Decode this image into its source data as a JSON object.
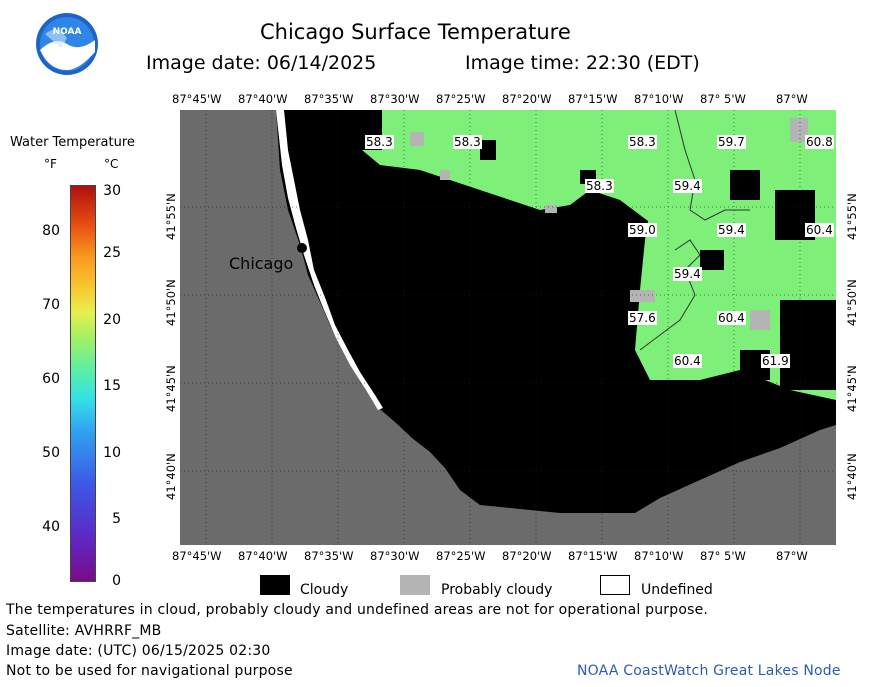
{
  "header": {
    "title": "Chicago Surface Temperature",
    "image_date": "Image date: 06/14/2025",
    "image_time": "Image time: 22:30 (EDT)"
  },
  "logo": {
    "text": "NOAA"
  },
  "colorbar": {
    "title": "Water Temperature",
    "unit_f": "°F",
    "unit_c": "°C",
    "f_ticks": [
      "80",
      "70",
      "60",
      "50",
      "40"
    ],
    "c_ticks": [
      "30",
      "25",
      "20",
      "15",
      "10",
      "5",
      "0"
    ]
  },
  "map": {
    "lon_labels": [
      "87°45'W",
      "87°40'W",
      "87°35'W",
      "87°30'W",
      "87°25'W",
      "87°20'W",
      "87°15'W",
      "87°10'W",
      "87° 5'W",
      "87°W"
    ],
    "lat_labels": [
      "41°55'N",
      "41°50'N",
      "41°45'N",
      "41°40'N"
    ],
    "city_label": "Chicago",
    "temperatures": [
      "58.3",
      "58.3",
      "58.3",
      "59.7",
      "60.8",
      "58.3",
      "59.4",
      "59.0",
      "59.4",
      "60.4",
      "59.4",
      "57.6",
      "60.4",
      "60.4",
      "61.9"
    ]
  },
  "legend": {
    "cloudy": "Cloudy",
    "probably_cloudy": "Probably cloudy",
    "undefined": "Undefined"
  },
  "footer": {
    "note": "The temperatures in cloud, probably cloudy and undefined areas are not for operational purpose.",
    "satellite": "Satellite: AVHRRF_MB",
    "utc_date": "Image date: (UTC) 06/15/2025  02:30",
    "nav_warning": "Not to be used for navigational purpose",
    "credit": "NOAA CoastWatch Great Lakes Node"
  },
  "colors": {
    "land": "#6b6b6b",
    "cloud": "#000000",
    "probably_cloudy": "#b4b4b4",
    "water_green": "#7ef07a",
    "credit_blue": "#2a5db0"
  }
}
